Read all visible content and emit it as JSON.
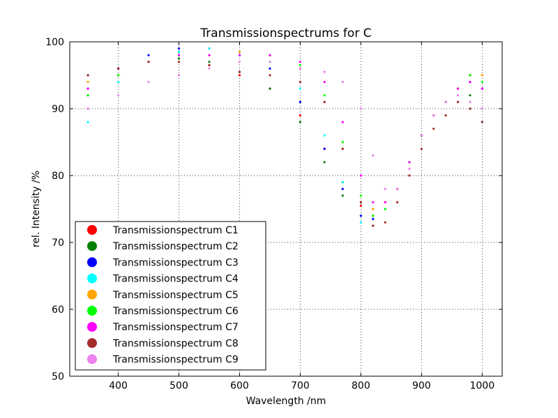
{
  "chart_data": {
    "type": "scatter",
    "title": "Transmissionspectrums for C",
    "xlabel": "Wavelength  /nm",
    "ylabel": "rel. Intensity  /%",
    "xlim": [
      320,
      1033
    ],
    "ylim": [
      50,
      100
    ],
    "xticks": [
      "400",
      "500",
      "600",
      "700",
      "800",
      "900",
      "1000"
    ],
    "yticks": [
      "50",
      "60",
      "70",
      "80",
      "90",
      "100"
    ],
    "grid": true,
    "legend_position": "lower-left",
    "series": [
      {
        "name": "Transmissionspectrum C1",
        "color": "#ff0000",
        "x": [
          350,
          400,
          450,
          500,
          550,
          600,
          650,
          700,
          740,
          770,
          800,
          820,
          840,
          860,
          880,
          900,
          920,
          940,
          960,
          980,
          1000
        ],
        "y": [
          95,
          96,
          97,
          97.5,
          96.5,
          95,
          93,
          89,
          84,
          79,
          75.5,
          75,
          76,
          78,
          82,
          86,
          89,
          91,
          93,
          95,
          95
        ]
      },
      {
        "name": "Transmissionspectrum C2",
        "color": "#008000",
        "x": [
          350,
          400,
          450,
          500,
          550,
          600,
          650,
          700,
          740,
          770,
          800,
          820,
          840,
          860,
          880,
          900,
          920,
          940,
          960,
          980,
          1000
        ],
        "y": [
          92,
          95,
          97,
          97.5,
          97,
          95.5,
          93,
          88,
          82,
          77,
          74,
          74,
          76,
          78,
          82,
          86,
          89,
          91,
          93,
          92,
          90
        ]
      },
      {
        "name": "Transmissionspectrum C3",
        "color": "#0000ff",
        "x": [
          350,
          400,
          450,
          500,
          550,
          600,
          650,
          700,
          740,
          770,
          800,
          820,
          840,
          860,
          880,
          900,
          920,
          940,
          960,
          980,
          1000
        ],
        "y": [
          93,
          96,
          98,
          99,
          99,
          98,
          96,
          91,
          84,
          78,
          74,
          73.5,
          75,
          78,
          82,
          86,
          89,
          91,
          93,
          94,
          93
        ]
      },
      {
        "name": "Transmissionspectrum C4",
        "color": "#00ffff",
        "x": [
          350,
          400,
          450,
          500,
          550,
          600,
          650,
          700,
          740,
          770,
          800,
          820,
          840,
          860,
          880,
          900,
          920,
          940,
          960,
          980,
          1000
        ],
        "y": [
          88,
          94,
          97,
          98.5,
          99,
          98.5,
          97,
          93,
          86,
          79,
          73,
          72.5,
          75,
          78,
          82,
          86,
          89,
          91,
          92,
          90,
          88
        ]
      },
      {
        "name": "Transmissionspectrum C5",
        "color": "#ffa500",
        "x": [
          350,
          400,
          450,
          500,
          550,
          600,
          650,
          700,
          740,
          770,
          800,
          820,
          840,
          860,
          880,
          900,
          920,
          940,
          960,
          980,
          1000
        ],
        "y": [
          94,
          96,
          97,
          98,
          98,
          98.5,
          98,
          96,
          91,
          84,
          77,
          75,
          76,
          78,
          82,
          86,
          89,
          91,
          93,
          95,
          95
        ]
      },
      {
        "name": "Transmissionspectrum C6",
        "color": "#00ff00",
        "x": [
          350,
          400,
          450,
          500,
          550,
          600,
          650,
          700,
          740,
          770,
          800,
          820,
          840,
          860,
          880,
          900,
          920,
          940,
          960,
          980,
          1000
        ],
        "y": [
          92,
          95,
          97,
          98,
          98,
          98,
          98,
          96.5,
          92,
          85,
          77,
          74,
          75,
          78,
          82,
          86,
          89,
          91,
          93,
          95,
          94
        ]
      },
      {
        "name": "Transmissionspectrum C7",
        "color": "#ff00ff",
        "x": [
          350,
          400,
          450,
          500,
          550,
          600,
          650,
          700,
          740,
          770,
          800,
          820,
          840,
          860,
          880,
          900,
          920,
          940,
          960,
          980,
          1000
        ],
        "y": [
          93,
          96,
          97,
          98,
          98,
          98,
          98,
          97,
          94,
          88,
          80,
          76,
          76,
          78,
          82,
          86,
          89,
          91,
          93,
          94,
          93
        ]
      },
      {
        "name": "Transmissionspectrum C8",
        "color": "#a52a2a",
        "x": [
          350,
          400,
          450,
          500,
          550,
          600,
          650,
          700,
          740,
          770,
          800,
          820,
          840,
          860,
          880,
          900,
          920,
          940,
          960,
          980,
          1000
        ],
        "y": [
          95,
          96,
          97,
          97,
          96.5,
          95.5,
          95,
          94,
          91,
          84,
          76,
          72.5,
          73,
          76,
          80,
          84,
          87,
          89,
          91,
          90,
          88
        ]
      },
      {
        "name": "Transmissionspectrum C9",
        "color": "#ee82ee",
        "x": [
          350,
          400,
          450,
          500,
          550,
          600,
          650,
          700,
          740,
          770,
          800,
          820,
          840,
          860,
          880,
          900,
          920,
          940,
          960,
          980,
          1000
        ],
        "y": [
          90,
          92,
          94,
          95,
          96,
          97,
          97,
          96,
          95.5,
          94,
          90,
          83,
          78,
          78,
          81,
          86,
          89,
          91,
          92,
          91,
          90
        ]
      }
    ]
  }
}
